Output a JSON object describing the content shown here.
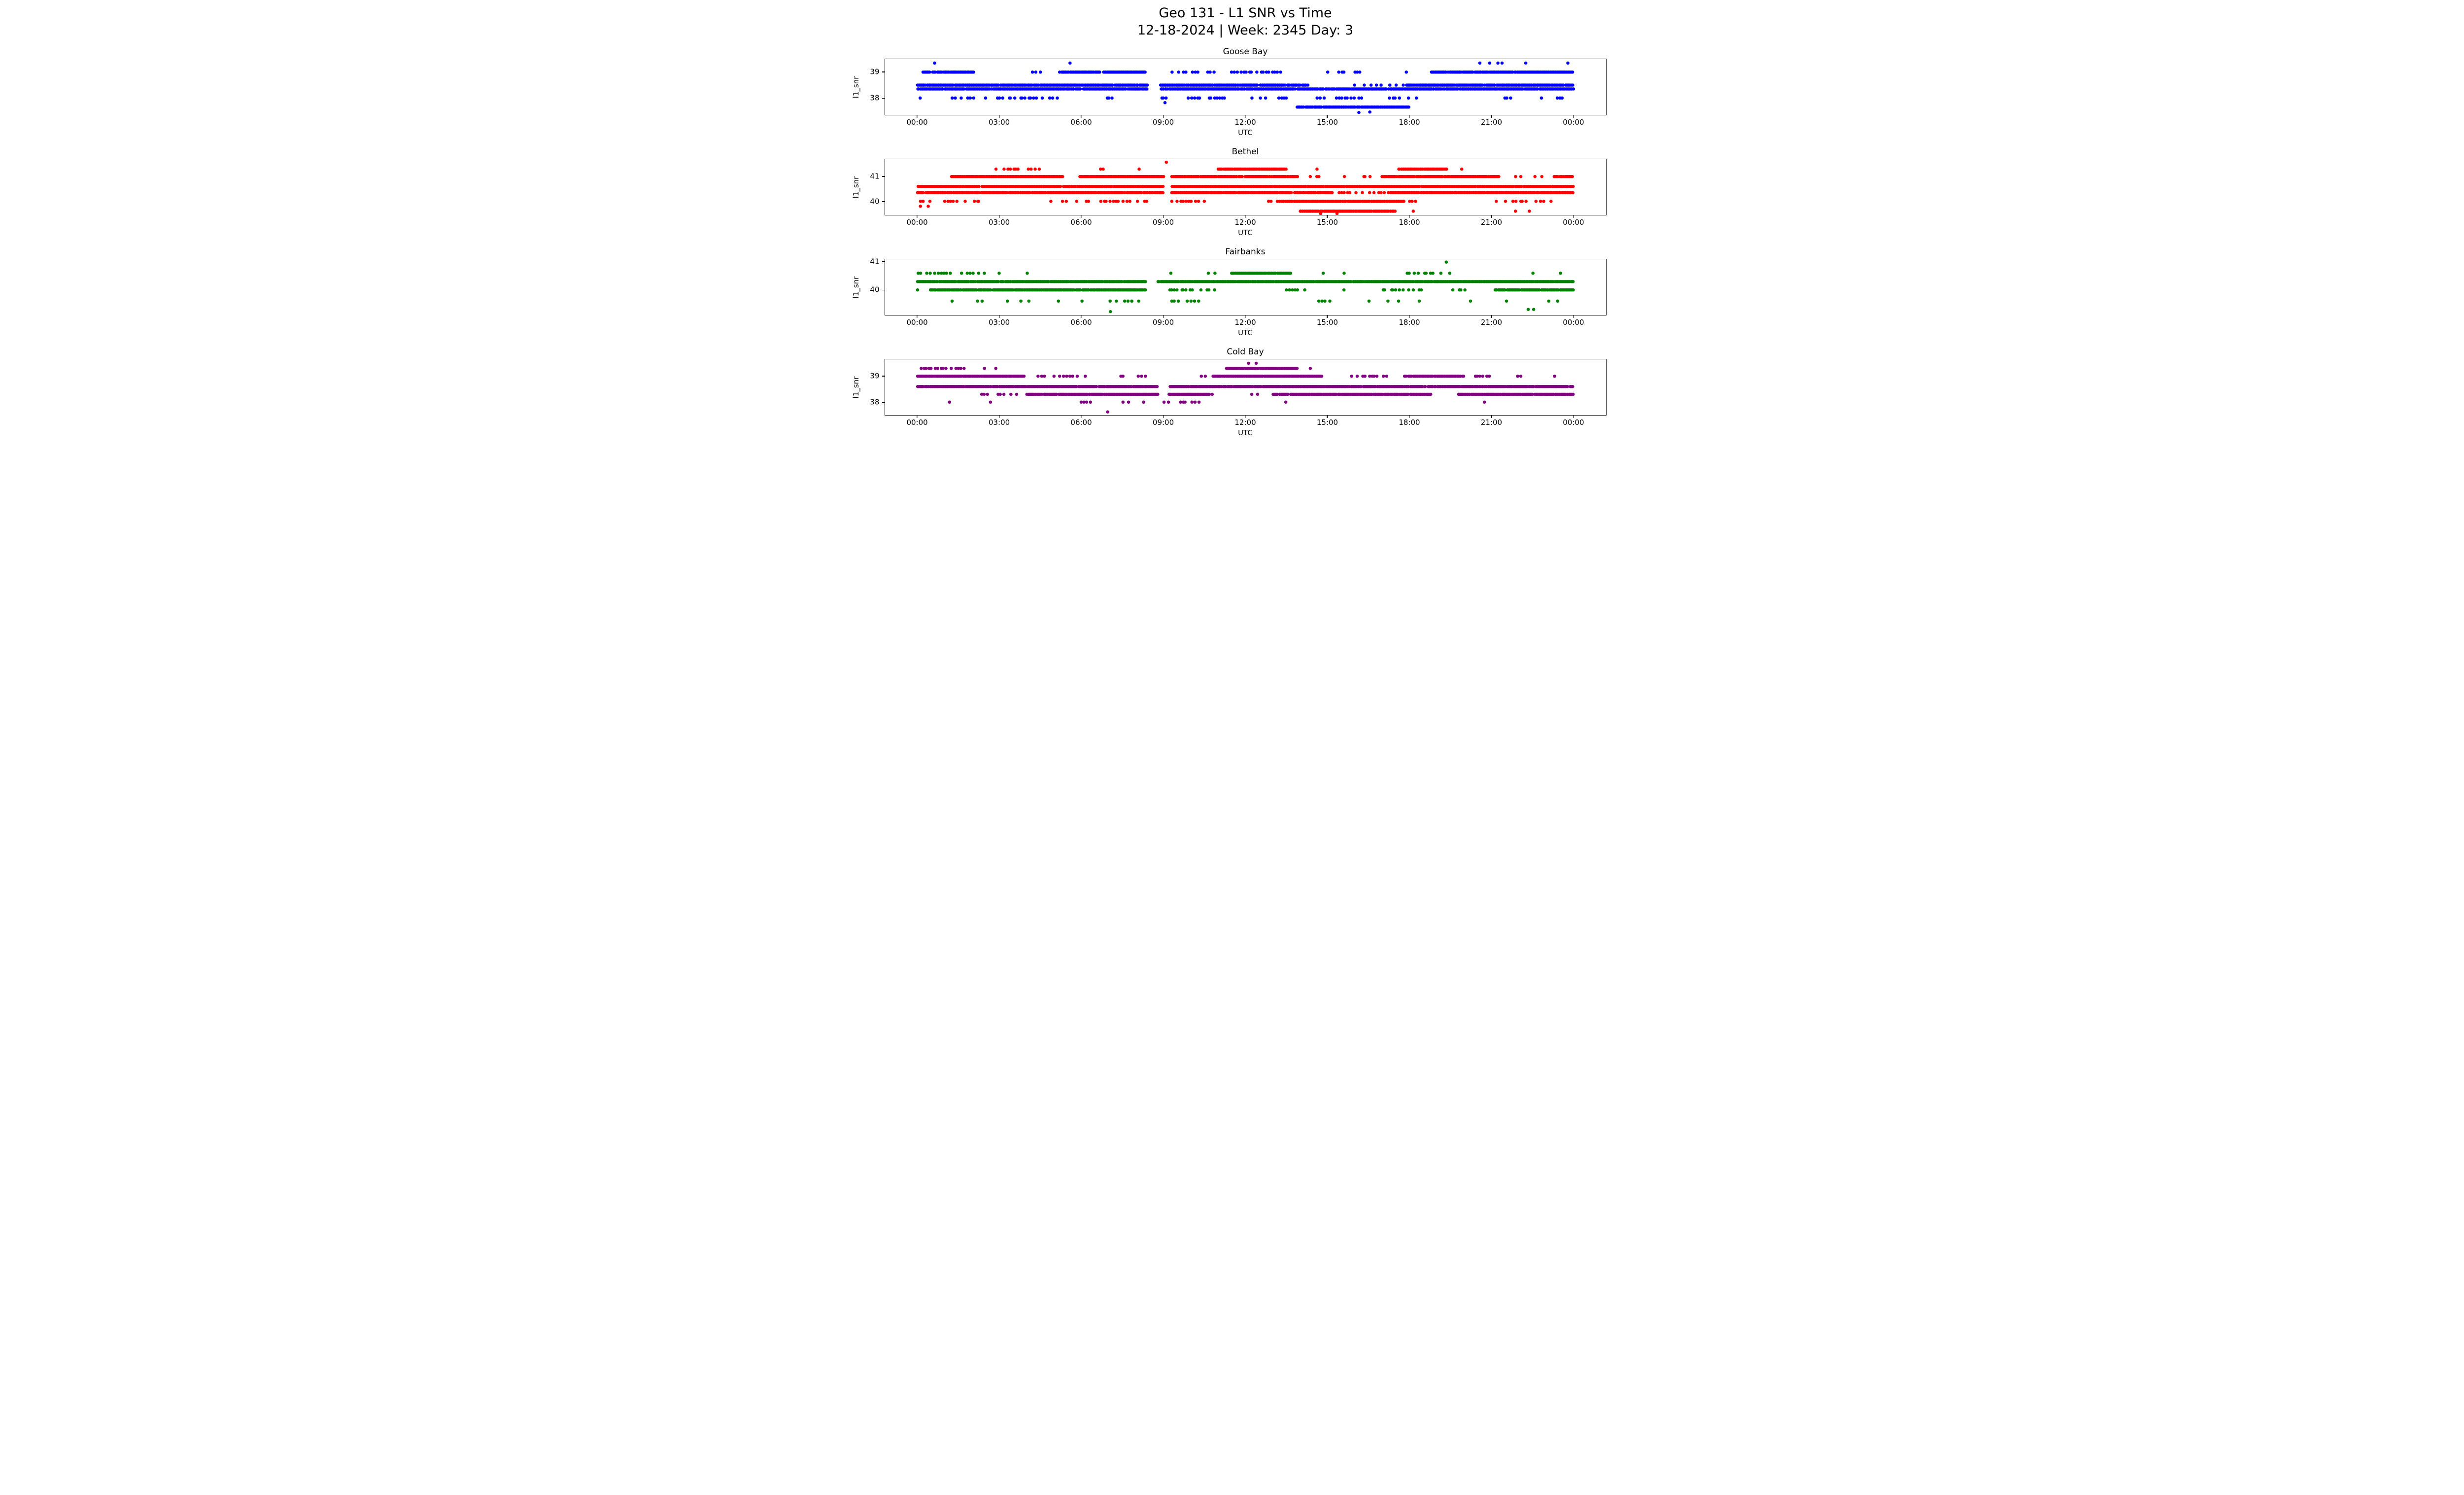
{
  "figure": {
    "title_line1": "Geo 131 - L1 SNR vs Time",
    "title_line2": "12-18-2024 | Week: 2345 Day: 3"
  },
  "xaxis": {
    "label": "UTC",
    "tick_hours": [
      0,
      3,
      6,
      9,
      12,
      15,
      18,
      21,
      24
    ],
    "tick_labels": [
      "00:00",
      "03:00",
      "06:00",
      "09:00",
      "12:00",
      "15:00",
      "18:00",
      "21:00",
      "00:00"
    ]
  },
  "chart_data": [
    {
      "type": "scatter",
      "title": "Goose Bay",
      "xlabel": "UTC",
      "ylabel": "l1_snr",
      "color": "#0000ff",
      "x_range_hours": [
        0,
        24
      ],
      "ylim": [
        37.35,
        39.5
      ],
      "yticks": [
        38,
        39
      ],
      "bands": [
        {
          "y": 39.35,
          "density": "sparse",
          "segments": [
            [
              0.55,
              0.78
            ],
            [
              5.5,
              5.68
            ],
            [
              6.3,
              6.48
            ],
            [
              7.0,
              7.18
            ],
            [
              19.3,
              19.5
            ],
            [
              20.3,
              20.55
            ],
            [
              21.0,
              22.3
            ],
            [
              23.0,
              23.2
            ],
            [
              23.6,
              23.85
            ]
          ]
        },
        {
          "y": 39.0,
          "density": "solid",
          "segments": [
            [
              0.2,
              2.05
            ],
            [
              5.2,
              8.35
            ],
            [
              18.8,
              24.0
            ]
          ]
        },
        {
          "y": 39.0,
          "density": "spotty",
          "segments": [
            [
              4.2,
              4.6
            ],
            [
              9.3,
              10.25
            ],
            [
              10.6,
              10.85
            ],
            [
              11.5,
              13.3
            ],
            [
              14.9,
              15.1
            ],
            [
              15.4,
              15.65
            ],
            [
              16.0,
              16.25
            ],
            [
              17.9,
              18.1
            ]
          ]
        },
        {
          "y": 38.5,
          "density": "solid",
          "segments": [
            [
              0.0,
              8.4
            ],
            [
              8.9,
              14.3
            ],
            [
              17.9,
              24.0
            ]
          ]
        },
        {
          "y": 38.5,
          "density": "sparse",
          "segments": [
            [
              14.4,
              17.8
            ]
          ]
        },
        {
          "y": 38.35,
          "density": "solid",
          "segments": [
            [
              0.0,
              8.4
            ],
            [
              8.9,
              24.0
            ]
          ]
        },
        {
          "y": 38.0,
          "density": "spotty",
          "segments": [
            [
              0.0,
              0.35
            ],
            [
              1.3,
              2.6
            ],
            [
              2.9,
              5.2
            ],
            [
              6.9,
              7.15
            ],
            [
              8.3,
              8.4
            ],
            [
              8.9,
              9.2
            ],
            [
              9.9,
              11.3
            ],
            [
              12.1,
              12.75
            ],
            [
              13.2,
              13.55
            ],
            [
              14.5,
              16.3
            ],
            [
              17.3,
              18.35
            ],
            [
              19.1,
              19.3
            ],
            [
              21.5,
              21.75
            ],
            [
              22.6,
              22.85
            ],
            [
              23.4,
              23.65
            ]
          ]
        },
        {
          "y": 37.65,
          "density": "solid",
          "segments": [
            [
              13.9,
              18.0
            ]
          ]
        }
      ],
      "points": [
        [
          9.05,
          37.82
        ],
        [
          16.15,
          37.44
        ],
        [
          16.55,
          37.46
        ]
      ]
    },
    {
      "type": "scatter",
      "title": "Bethel",
      "xlabel": "UTC",
      "ylabel": "l1_snr",
      "color": "#ff0000",
      "x_range_hours": [
        0,
        24
      ],
      "ylim": [
        39.45,
        41.7
      ],
      "yticks": [
        40,
        41
      ],
      "bands": [
        {
          "y": 41.3,
          "density": "spotty",
          "segments": [
            [
              2.85,
              4.45
            ],
            [
              6.7,
              6.9
            ],
            [
              8.0,
              8.2
            ],
            [
              14.55,
              14.75
            ],
            [
              19.9,
              20.15
            ]
          ]
        },
        {
          "y": 41.3,
          "density": "solid",
          "segments": [
            [
              11.0,
              13.5
            ],
            [
              17.6,
              19.4
            ]
          ]
        },
        {
          "y": 41.0,
          "density": "solid",
          "segments": [
            [
              1.25,
              5.3
            ],
            [
              5.9,
              9.0
            ],
            [
              9.3,
              13.9
            ],
            [
              17.0,
              21.3
            ],
            [
              23.3,
              24.0
            ]
          ]
        },
        {
          "y": 41.0,
          "density": "spotty",
          "segments": [
            [
              14.4,
              14.75
            ],
            [
              15.5,
              15.75
            ],
            [
              16.2,
              16.55
            ],
            [
              21.9,
              22.15
            ],
            [
              22.6,
              22.85
            ]
          ]
        },
        {
          "y": 40.6,
          "density": "solid",
          "segments": [
            [
              0.0,
              9.0
            ],
            [
              9.3,
              24.0
            ]
          ]
        },
        {
          "y": 40.35,
          "density": "solid",
          "segments": [
            [
              0.0,
              9.0
            ],
            [
              9.3,
              15.2
            ],
            [
              17.3,
              24.0
            ]
          ]
        },
        {
          "y": 40.35,
          "density": "spotty",
          "segments": [
            [
              15.2,
              17.3
            ]
          ]
        },
        {
          "y": 40.0,
          "density": "spotty",
          "segments": [
            [
              0.0,
              0.5
            ],
            [
              0.9,
              2.4
            ],
            [
              4.9,
              6.3
            ],
            [
              6.6,
              8.6
            ],
            [
              9.3,
              10.55
            ],
            [
              12.6,
              13.3
            ],
            [
              18.0,
              18.25
            ],
            [
              21.2,
              23.2
            ]
          ]
        },
        {
          "y": 40.0,
          "density": "solid",
          "segments": [
            [
              13.3,
              17.8
            ]
          ]
        },
        {
          "y": 39.8,
          "density": "sparse",
          "segments": [
            [
              0.05,
              0.4
            ]
          ]
        },
        {
          "y": 39.6,
          "density": "solid",
          "segments": [
            [
              14.0,
              17.5
            ]
          ]
        },
        {
          "y": 39.6,
          "density": "sparse",
          "segments": [
            [
              13.0,
              13.2
            ],
            [
              18.05,
              18.2
            ],
            [
              21.8,
              22.0
            ],
            [
              22.3,
              22.5
            ],
            [
              22.8,
              23.0
            ],
            [
              23.3,
              23.5
            ]
          ]
        }
      ],
      "points": [
        [
          9.1,
          41.58
        ],
        [
          14.75,
          39.5
        ],
        [
          15.35,
          39.5
        ]
      ]
    },
    {
      "type": "scatter",
      "title": "Fairbanks",
      "xlabel": "UTC",
      "ylabel": "l1_snr",
      "color": "#008000",
      "x_range_hours": [
        0,
        24
      ],
      "ylim": [
        39.1,
        41.1
      ],
      "yticks": [
        40,
        41
      ],
      "bands": [
        {
          "y": 40.6,
          "density": "spotty",
          "segments": [
            [
              0.0,
              2.3
            ],
            [
              17.9,
              19.0
            ]
          ]
        },
        {
          "y": 40.6,
          "density": "solid",
          "segments": [
            [
              11.5,
              13.65
            ]
          ]
        },
        {
          "y": 40.6,
          "density": "sparse",
          "segments": [
            [
              2.5,
              2.7
            ],
            [
              3.05,
              3.25
            ],
            [
              4.0,
              4.2
            ],
            [
              5.8,
              6.05
            ],
            [
              9.1,
              9.35
            ],
            [
              10.7,
              10.95
            ],
            [
              14.55,
              14.85
            ],
            [
              15.55,
              15.95
            ],
            [
              19.15,
              19.5
            ],
            [
              22.25,
              22.55
            ],
            [
              23.55,
              23.85
            ]
          ]
        },
        {
          "y": 40.3,
          "density": "solid",
          "segments": [
            [
              0.0,
              8.35
            ],
            [
              8.8,
              24.0
            ]
          ]
        },
        {
          "y": 40.0,
          "density": "solid",
          "segments": [
            [
              0.45,
              8.35
            ],
            [
              21.1,
              24.0
            ]
          ]
        },
        {
          "y": 40.0,
          "density": "spotty",
          "segments": [
            [
              0.0,
              0.3
            ],
            [
              8.9,
              11.0
            ],
            [
              13.5,
              14.35
            ],
            [
              16.9,
              18.5
            ],
            [
              19.6,
              20.05
            ]
          ]
        },
        {
          "y": 40.0,
          "density": "sparse",
          "segments": [
            [
              12.2,
              12.45
            ],
            [
              15.3,
              15.55
            ]
          ]
        },
        {
          "y": 39.6,
          "density": "spotty",
          "segments": [
            [
              6.5,
              8.3
            ],
            [
              9.3,
              10.3
            ],
            [
              14.6,
              15.2
            ]
          ]
        },
        {
          "y": 39.6,
          "density": "sparse",
          "segments": [
            [
              0.3,
              0.55
            ],
            [
              1.0,
              1.25
            ],
            [
              2.2,
              2.55
            ],
            [
              3.3,
              4.05
            ],
            [
              4.9,
              5.15
            ],
            [
              6.0,
              6.25
            ],
            [
              11.1,
              11.3
            ],
            [
              12.5,
              12.7
            ],
            [
              16.3,
              16.55
            ],
            [
              17.3,
              17.55
            ],
            [
              18.3,
              18.65
            ],
            [
              20.3,
              20.65
            ],
            [
              21.3,
              21.65
            ],
            [
              22.0,
              22.25
            ],
            [
              23.2,
              23.6
            ]
          ]
        }
      ],
      "points": [
        [
          19.35,
          41.0
        ],
        [
          7.05,
          39.22
        ],
        [
          22.35,
          39.3
        ],
        [
          22.55,
          39.3
        ]
      ]
    },
    {
      "type": "scatter",
      "title": "Cold Bay",
      "xlabel": "UTC",
      "ylabel": "l1_snr",
      "color": "#800080",
      "x_range_hours": [
        0,
        24
      ],
      "ylim": [
        37.5,
        39.65
      ],
      "yticks": [
        38,
        39
      ],
      "bands": [
        {
          "y": 39.5,
          "density": "sparse",
          "segments": [
            [
              11.85,
              12.35
            ]
          ]
        },
        {
          "y": 39.3,
          "density": "spotty",
          "segments": [
            [
              0.1,
              1.8
            ]
          ]
        },
        {
          "y": 39.3,
          "density": "solid",
          "segments": [
            [
              11.3,
              13.9
            ]
          ]
        },
        {
          "y": 39.3,
          "density": "sparse",
          "segments": [
            [
              2.0,
              2.2
            ],
            [
              2.5,
              2.7
            ],
            [
              2.95,
              3.15
            ],
            [
              14.4,
              14.6
            ],
            [
              17.5,
              17.7
            ],
            [
              18.45,
              18.65
            ],
            [
              20.9,
              21.1
            ]
          ]
        },
        {
          "y": 39.0,
          "density": "solid",
          "segments": [
            [
              0.0,
              3.9
            ],
            [
              10.8,
              14.8
            ],
            [
              17.8,
              20.0
            ]
          ]
        },
        {
          "y": 39.0,
          "density": "spotty",
          "segments": [
            [
              4.4,
              4.65
            ],
            [
              5.0,
              6.2
            ],
            [
              7.3,
              7.55
            ],
            [
              8.0,
              8.4
            ],
            [
              8.6,
              8.8
            ],
            [
              10.3,
              10.6
            ],
            [
              15.9,
              16.15
            ],
            [
              16.3,
              17.3
            ],
            [
              20.4,
              21.3
            ],
            [
              22.0,
              22.3
            ],
            [
              23.2,
              23.5
            ]
          ]
        },
        {
          "y": 38.6,
          "density": "solid",
          "segments": [
            [
              0.0,
              8.8
            ],
            [
              9.2,
              24.0
            ]
          ]
        },
        {
          "y": 38.3,
          "density": "solid",
          "segments": [
            [
              4.0,
              8.8
            ],
            [
              9.2,
              10.6
            ],
            [
              13.0,
              18.8
            ],
            [
              19.8,
              24.0
            ]
          ]
        },
        {
          "y": 38.3,
          "density": "spotty",
          "segments": [
            [
              2.3,
              2.55
            ],
            [
              2.9,
              3.15
            ],
            [
              3.4,
              3.65
            ],
            [
              10.6,
              11.0
            ],
            [
              12.2,
              12.45
            ]
          ]
        },
        {
          "y": 38.0,
          "density": "spotty",
          "segments": [
            [
              6.0,
              6.5
            ],
            [
              7.3,
              7.8
            ],
            [
              9.6,
              10.4
            ]
          ]
        },
        {
          "y": 38.0,
          "density": "sparse",
          "segments": [
            [
              1.2,
              1.4
            ],
            [
              2.7,
              2.9
            ],
            [
              4.2,
              4.4
            ],
            [
              5.2,
              5.4
            ],
            [
              8.3,
              8.55
            ],
            [
              9.0,
              9.25
            ],
            [
              13.5,
              13.7
            ],
            [
              16.2,
              16.4
            ],
            [
              19.7,
              19.9
            ],
            [
              20.7,
              20.9
            ],
            [
              21.5,
              21.7
            ],
            [
              22.8,
              23.0
            ]
          ]
        }
      ],
      "points": [
        [
          6.95,
          37.62
        ]
      ]
    }
  ]
}
